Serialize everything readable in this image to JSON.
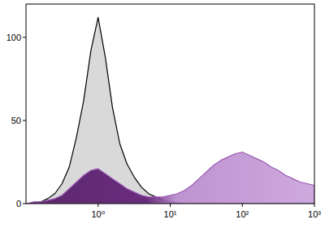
{
  "chart_data": {
    "type": "area",
    "x": [
      0.1,
      0.126,
      0.158,
      0.2,
      0.251,
      0.316,
      0.398,
      0.501,
      0.631,
      0.794,
      1,
      1.26,
      1.58,
      2,
      2.51,
      3.16,
      3.98,
      5.01,
      6.31,
      7.94,
      10,
      12.6,
      15.8,
      20,
      25.1,
      31.6,
      39.8,
      50.1,
      63.1,
      79.4,
      100,
      126,
      158,
      200,
      251,
      316,
      398,
      501,
      631,
      794,
      1000
    ],
    "series": [
      {
        "color": "#d9d9d9",
        "values": [
          0,
          0.5,
          1,
          3,
          6,
          12,
          22,
          40,
          62,
          92,
          112,
          88,
          58,
          36,
          24,
          16,
          10,
          6,
          4,
          2,
          1,
          0.5,
          0,
          0,
          0,
          0,
          0,
          0,
          0,
          0,
          0,
          0,
          0,
          0,
          0,
          0,
          0,
          0,
          0,
          0,
          0
        ]
      },
      {
        "color": "#9b5bb5",
        "values": [
          0,
          1,
          1,
          2,
          3,
          5,
          9,
          13,
          17,
          20,
          21,
          18,
          15,
          12,
          9,
          7,
          5,
          4,
          4,
          4,
          5,
          6,
          8,
          11,
          15,
          19,
          23,
          26,
          28,
          30,
          31,
          29,
          27,
          25,
          22,
          20,
          17,
          15,
          13,
          12,
          11
        ]
      }
    ],
    "log": "x",
    "xlim": [
      0.1,
      1000
    ],
    "xticks": [
      {
        "value": 1,
        "label": "10⁰"
      },
      {
        "value": 10,
        "label": "10¹"
      },
      {
        "value": 100,
        "label": "10²"
      },
      {
        "value": 1000,
        "label": "10³"
      }
    ],
    "ylim": [
      0,
      120
    ],
    "yticks": [
      0,
      50,
      100
    ],
    "grid": false
  }
}
